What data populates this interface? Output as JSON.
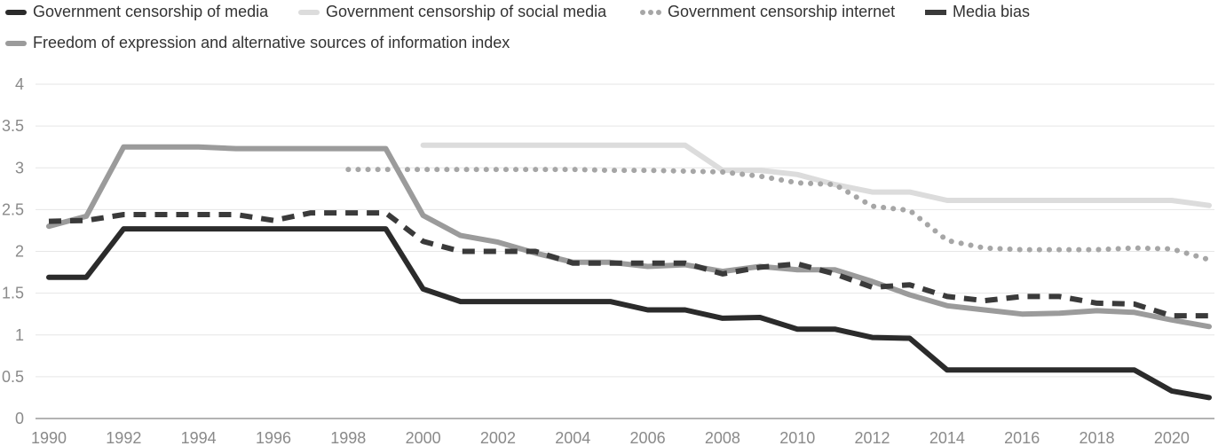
{
  "chart_data": {
    "type": "line",
    "title": "",
    "xlabel": "",
    "ylabel": "",
    "ylim": [
      0,
      4
    ],
    "y_ticks": [
      "0",
      "0.5",
      "1",
      "1.5",
      "2",
      "2.5",
      "3",
      "3.5",
      "4"
    ],
    "x_ticks": [
      "1990",
      "1992",
      "1994",
      "1996",
      "1998",
      "2000",
      "2002",
      "2004",
      "2006",
      "2008",
      "2010",
      "2012",
      "2014",
      "2016",
      "2018",
      "2020"
    ],
    "grid": true,
    "legend_position": "top-left",
    "x": [
      1990,
      1991,
      1992,
      1993,
      1994,
      1995,
      1996,
      1997,
      1998,
      1999,
      2000,
      2001,
      2002,
      2003,
      2004,
      2005,
      2006,
      2007,
      2008,
      2009,
      2010,
      2011,
      2012,
      2013,
      2014,
      2015,
      2016,
      2017,
      2018,
      2019,
      2020,
      2021
    ],
    "series": [
      {
        "name": "Government censorship of media",
        "color": "#2b2b2b",
        "style": "solid",
        "values": [
          1.69,
          1.69,
          2.27,
          2.27,
          2.27,
          2.27,
          2.27,
          2.27,
          2.27,
          2.27,
          1.55,
          1.4,
          1.4,
          1.4,
          1.4,
          1.4,
          1.3,
          1.3,
          1.2,
          1.21,
          1.07,
          1.07,
          0.97,
          0.96,
          0.58,
          0.58,
          0.58,
          0.58,
          0.58,
          0.58,
          0.33,
          0.25
        ]
      },
      {
        "name": "Government censorship of social media",
        "color": "#dcdcdc",
        "style": "solid",
        "values": [
          null,
          null,
          null,
          null,
          null,
          null,
          null,
          null,
          null,
          null,
          3.27,
          3.27,
          3.27,
          3.27,
          3.27,
          3.27,
          3.27,
          3.27,
          2.97,
          2.97,
          2.92,
          2.8,
          2.71,
          2.71,
          2.61,
          2.61,
          2.61,
          2.61,
          2.61,
          2.61,
          2.61,
          2.55
        ]
      },
      {
        "name": "Government censorship internet",
        "color": "#a6a6a6",
        "style": "dotted",
        "values": [
          null,
          null,
          null,
          null,
          null,
          null,
          null,
          null,
          2.98,
          2.98,
          2.98,
          2.98,
          2.98,
          2.98,
          2.98,
          2.97,
          2.97,
          2.96,
          2.95,
          2.9,
          2.82,
          2.8,
          2.54,
          2.49,
          2.13,
          2.04,
          2.02,
          2.02,
          2.02,
          2.04,
          2.03,
          1.9
        ]
      },
      {
        "name": "Media bias",
        "color": "#3a3a3a",
        "style": "dashed",
        "values": [
          2.36,
          2.37,
          2.44,
          2.44,
          2.44,
          2.44,
          2.37,
          2.46,
          2.46,
          2.46,
          2.12,
          2.0,
          2.0,
          2.0,
          1.86,
          1.86,
          1.86,
          1.86,
          1.73,
          1.81,
          1.85,
          1.73,
          1.57,
          1.6,
          1.46,
          1.41,
          1.46,
          1.46,
          1.38,
          1.37,
          1.23,
          1.23
        ]
      },
      {
        "name": "Freedom of expression and alternative sources of information index",
        "color": "#9b9b9b",
        "style": "solid",
        "values": [
          2.3,
          2.42,
          3.25,
          3.25,
          3.25,
          3.23,
          3.23,
          3.23,
          3.23,
          3.23,
          2.43,
          2.19,
          2.11,
          1.98,
          1.87,
          1.87,
          1.82,
          1.84,
          1.76,
          1.82,
          1.78,
          1.78,
          1.64,
          1.48,
          1.35,
          1.3,
          1.25,
          1.26,
          1.29,
          1.27,
          1.18,
          1.1
        ]
      }
    ]
  }
}
